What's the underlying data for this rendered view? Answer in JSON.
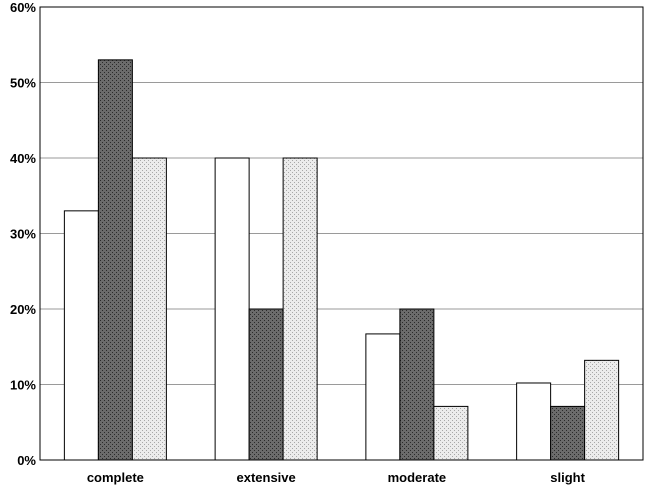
{
  "chart_data": {
    "type": "bar",
    "categories": [
      "complete",
      "extensive",
      "moderate",
      "slight"
    ],
    "series": [
      {
        "values": [
          33,
          40,
          16.7,
          10.2
        ]
      },
      {
        "values": [
          53,
          20,
          20,
          7.1
        ]
      },
      {
        "values": [
          40,
          40,
          7.1,
          13.2
        ]
      }
    ],
    "ylim": [
      0,
      60
    ],
    "yticks": [
      0,
      10,
      20,
      30,
      40,
      50,
      60
    ],
    "ytick_format": "%",
    "grid": true,
    "legend": "none",
    "colors": {
      "series_fill": [
        "#ffffff",
        "#6b6b6b",
        "#e2e2e2"
      ],
      "series_pattern": [
        "none",
        "dots-dark",
        "dots-light"
      ],
      "gridline": "#9a9a9a",
      "axis": "#000000"
    }
  }
}
